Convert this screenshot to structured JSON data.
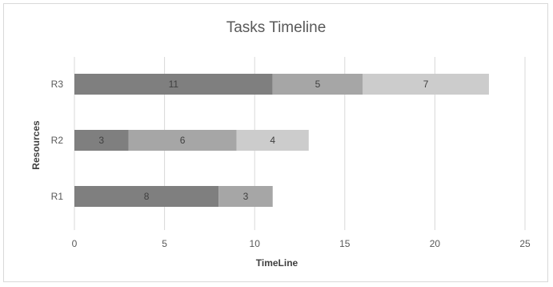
{
  "chart_data": {
    "type": "bar",
    "orientation": "horizontal",
    "stacked": true,
    "title": "Tasks Timeline",
    "xlabel": "TimeLine",
    "ylabel": "Resources",
    "xlim": [
      0,
      25
    ],
    "xticks": [
      "0",
      "5",
      "10",
      "15",
      "20",
      "25"
    ],
    "categories": [
      "R3",
      "R2",
      "R1"
    ],
    "rows": [
      {
        "category": "R3",
        "segments": [
          11,
          5,
          7
        ]
      },
      {
        "category": "R2",
        "segments": [
          3,
          6,
          4
        ]
      },
      {
        "category": "R1",
        "segments": [
          8,
          3
        ]
      }
    ],
    "grid": true,
    "legend": "none"
  },
  "colors": {
    "segment_1": "#7f7f7f",
    "segment_2": "#a6a6a6",
    "segment_3": "#cccccc",
    "gridline": "#d9d9d9",
    "text": "#595959"
  }
}
